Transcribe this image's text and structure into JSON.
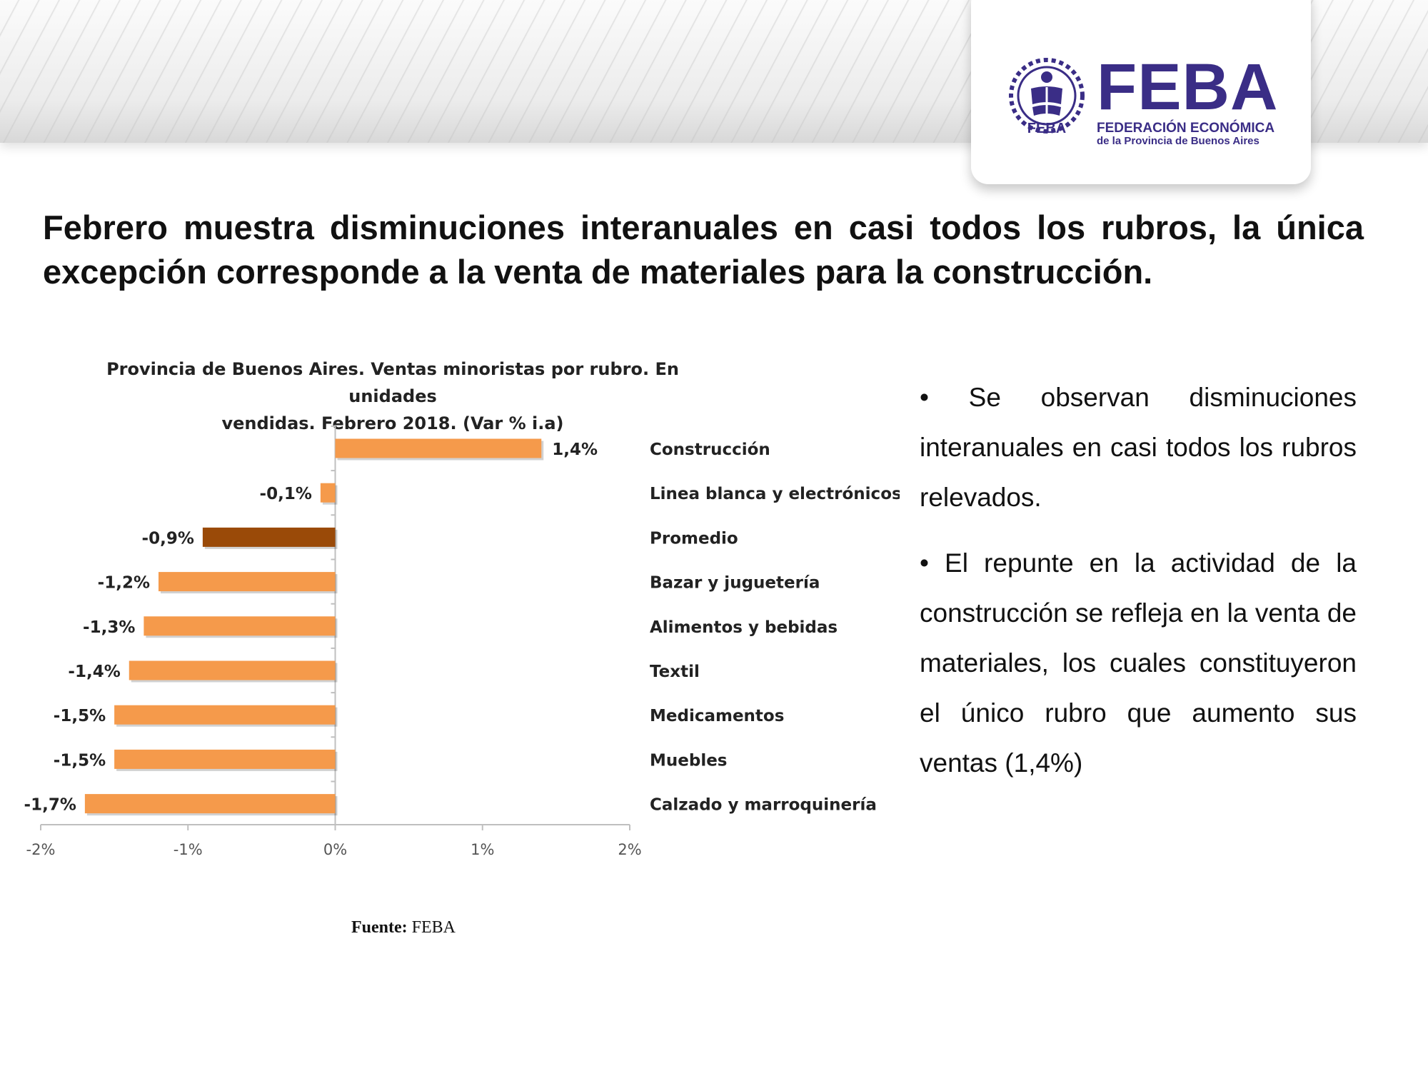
{
  "logo": {
    "name": "FEBA",
    "subtitle_line1": "FEDERACIÓN ECONÓMICA",
    "subtitle_line2": "de la Provincia de Buenos Aires",
    "emblem_text": "FEBA",
    "brand_color": "#3a2d86"
  },
  "headline": "Febrero muestra disminuciones interanuales en casi todos los rubros, la única excepción corresponde a la venta de materiales para la construcción.",
  "chart_data": {
    "type": "bar",
    "orientation": "horizontal",
    "title_line1": "Provincia de Buenos Aires. Ventas minoristas por rubro. En unidades",
    "title_line2": "vendidas.  Febrero 2018. (Var % i.a)",
    "categories": [
      "Construcción",
      "Linea blanca y electrónicos",
      "Promedio",
      "Bazar y juguetería",
      "Alimentos y bebidas",
      "Textil",
      "Medicamentos",
      "Muebles",
      "Calzado y marroquinería"
    ],
    "values": [
      1.4,
      -0.1,
      -0.9,
      -1.2,
      -1.3,
      -1.4,
      -1.5,
      -1.5,
      -1.7
    ],
    "data_labels": [
      "1,4%",
      "-0,1%",
      "-0,9%",
      "-1,2%",
      "-1,3%",
      "-1,4%",
      "-1,5%",
      "-1,5%",
      "-1,7%"
    ],
    "xlim": [
      -2,
      2
    ],
    "x_ticks": [
      -2,
      -1,
      0,
      1,
      2
    ],
    "x_tick_labels": [
      "-2%",
      "-1%",
      "0%",
      "1%",
      "2%"
    ],
    "colors": {
      "default": "#f59a4b",
      "highlight": "#9a4a08",
      "axis": "#bfbfbf"
    },
    "highlight_category": "Promedio",
    "grid": false,
    "legend": "none"
  },
  "source": {
    "label": "Fuente:",
    "value": "FEBA"
  },
  "bullets": [
    "• Se observan disminuciones interanuales en casi todos los rubros relevados.",
    "• El repunte en la actividad de la construcción  se refleja en la venta de materiales, los cuales constituyeron el único rubro que aumento sus ventas (1,4%)"
  ]
}
